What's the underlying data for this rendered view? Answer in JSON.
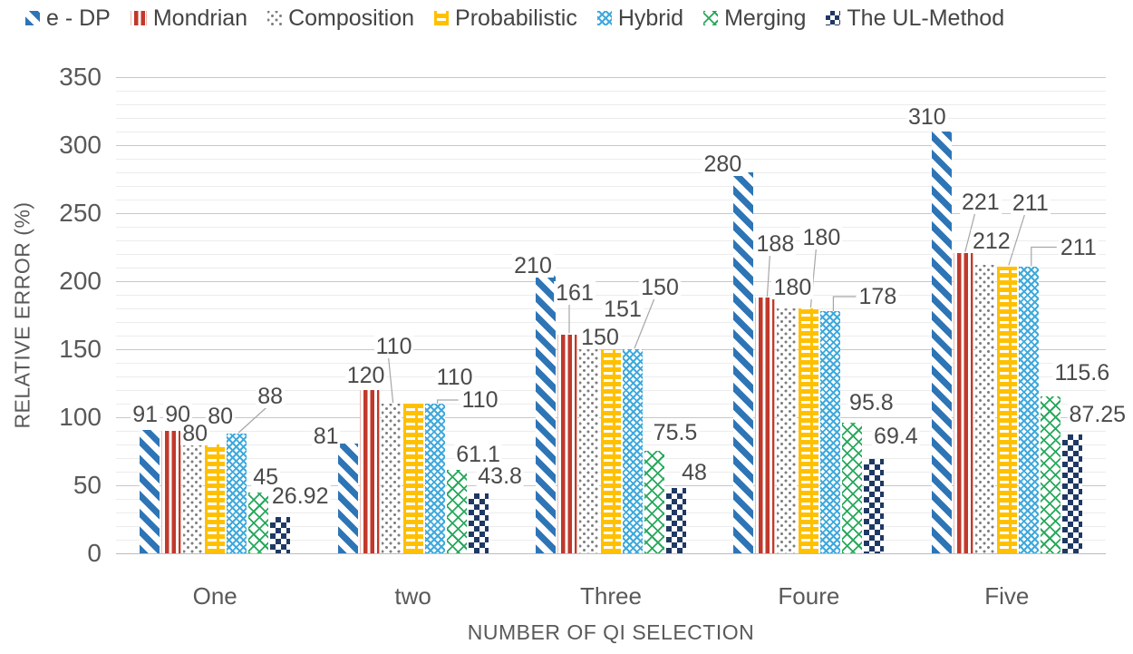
{
  "page": {
    "background": "#FFFFFF"
  },
  "legend": {
    "position": "top",
    "items": [
      {
        "label": "e - DP",
        "pattern": "ediag",
        "color": "#2E75B6"
      },
      {
        "label": "Mondrian",
        "pattern": "vstripe",
        "color": "#C0392B"
      },
      {
        "label": "Composition",
        "pattern": "dots",
        "color": "#7F7F7F"
      },
      {
        "label": "Probabilistic",
        "pattern": "dash",
        "color": "#FFC000"
      },
      {
        "label": "Hybrid",
        "pattern": "weave",
        "color": "#3FA9DC"
      },
      {
        "label": "Merging",
        "pattern": "lattice",
        "color": "#27A85C"
      },
      {
        "label": "The UL-Method",
        "pattern": "checker",
        "color": "#1F3864"
      }
    ]
  },
  "chart_data": {
    "type": "bar",
    "title": "",
    "xlabel": "NUMBER OF QI SELECTION",
    "ylabel": "RELATIVE ERROR (%)",
    "categories": [
      "One",
      "two",
      "Three",
      "Foure",
      "Five"
    ],
    "y_axis": {
      "min": 0,
      "max": 350,
      "major_step": 50,
      "minor_step": 10,
      "tick_labels": [
        "0",
        "50",
        "100",
        "150",
        "200",
        "250",
        "300",
        "350"
      ],
      "grid": true
    },
    "legend_position": "top",
    "data_labels": true,
    "series": [
      {
        "name": "e - DP",
        "pattern": "ediag",
        "color": "#2E75B6",
        "values": [
          91,
          81,
          210,
          280,
          310
        ]
      },
      {
        "name": "Mondrian",
        "pattern": "vstripe",
        "color": "#C0392B",
        "values": [
          90,
          120,
          161,
          188,
          221
        ]
      },
      {
        "name": "Composition",
        "pattern": "dots",
        "color": "#7F7F7F",
        "values": [
          80,
          110,
          150,
          180,
          212
        ]
      },
      {
        "name": "Probabilistic",
        "pattern": "dash",
        "color": "#FFC000",
        "values": [
          80,
          110,
          151,
          180,
          211
        ]
      },
      {
        "name": "Hybrid",
        "pattern": "weave",
        "color": "#3FA9DC",
        "values": [
          88,
          110,
          150,
          178,
          211
        ]
      },
      {
        "name": "Merging",
        "pattern": "lattice",
        "color": "#27A85C",
        "values": [
          45,
          61.1,
          75.5,
          95.8,
          115.6
        ]
      },
      {
        "name": "The UL-Method",
        "pattern": "checker",
        "color": "#1F3864",
        "values": [
          26.92,
          43.8,
          48,
          69.4,
          87.25
        ]
      }
    ],
    "label_layout": [
      [
        [
          -5,
          -17
        ],
        [
          -24,
          -8
        ],
        [
          -14,
          -2
        ],
        [
          -23,
          -9
        ],
        [
          -16,
          -16
        ]
      ],
      [
        [
          7,
          -18
        ],
        [
          -4,
          -16
        ],
        [
          8,
          -46,
          "diag"
        ],
        [
          11,
          -59,
          "diag"
        ],
        [
          19,
          -56,
          "diag"
        ]
      ],
      [
        [
          2,
          -12
        ],
        [
          3,
          -63,
          "diag"
        ],
        [
          12,
          -13
        ],
        [
          6,
          -23
        ],
        [
          7,
          -26
        ]
      ],
      [
        [
          6,
          -31
        ],
        [
          46,
          -29
        ],
        [
          13,
          -43
        ],
        [
          14,
          -78,
          "diag"
        ],
        [
          26,
          -70,
          "diag"
        ]
      ],
      [
        [
          37,
          -41,
          "diag"
        ],
        [
          50,
          -4,
          "elbow"
        ],
        [
          30,
          -68,
          "diag"
        ],
        [
          52,
          -16,
          "elbow"
        ],
        [
          55,
          -21,
          "elbow"
        ]
      ],
      [
        [
          8,
          -17
        ],
        [
          24,
          -17
        ],
        [
          23,
          -20
        ],
        [
          21,
          -22
        ],
        [
          35,
          -26
        ]
      ],
      [
        [
          22,
          -23
        ],
        [
          24,
          -19
        ],
        [
          20,
          -17
        ],
        [
          24,
          -25
        ],
        [
          28,
          -22
        ]
      ]
    ]
  }
}
